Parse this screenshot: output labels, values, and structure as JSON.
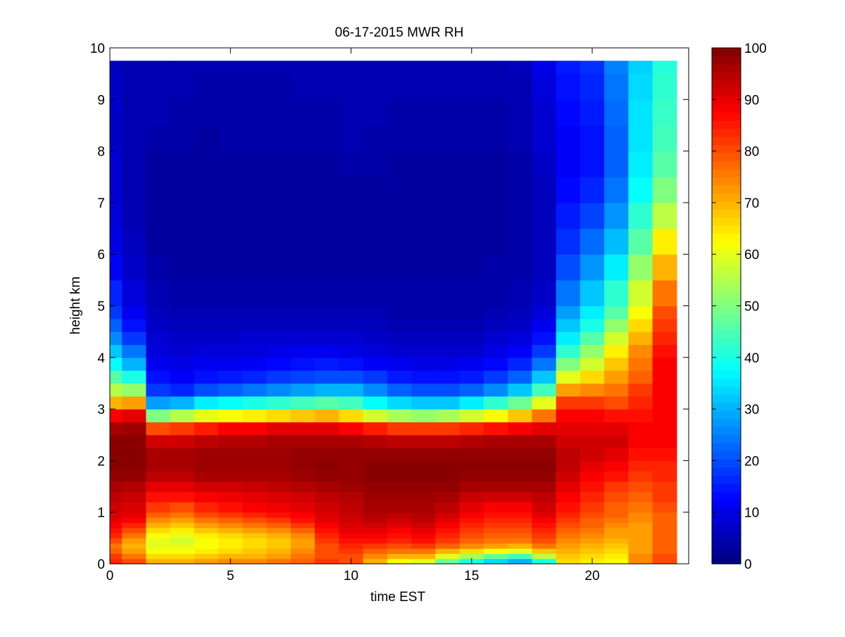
{
  "chart_data": {
    "type": "heatmap",
    "title": "06-17-2015 MWR RH",
    "xlabel": "time EST",
    "ylabel": "height km",
    "xlim": [
      0,
      24
    ],
    "ylim": [
      0,
      10
    ],
    "data_extent": {
      "x": [
        0,
        23.5
      ],
      "y": [
        0,
        9.75
      ]
    },
    "x_ticks": [
      0,
      5,
      10,
      15,
      20
    ],
    "y_ticks": [
      0,
      1,
      2,
      3,
      4,
      5,
      6,
      7,
      8,
      9,
      10
    ],
    "colorbar": {
      "colormap": "jet",
      "range": [
        0,
        100
      ],
      "ticks": [
        0,
        10,
        20,
        30,
        40,
        50,
        60,
        70,
        80,
        90,
        100
      ]
    },
    "cell_time_step_hr": 1,
    "heights_km": [
      0.0,
      0.1,
      0.2,
      0.3,
      0.4,
      0.5,
      0.6,
      0.7,
      0.8,
      0.9,
      1.0,
      1.2,
      1.4,
      1.6,
      1.8,
      2.0,
      2.25,
      2.5,
      2.75,
      3.0,
      3.25,
      3.5,
      3.75,
      4.0,
      4.25,
      4.5,
      4.75,
      5.0,
      5.5,
      6.0,
      6.5,
      7.0,
      7.5,
      8.0,
      8.5,
      9.0,
      9.5,
      9.75
    ],
    "times": [
      0,
      1,
      2,
      3,
      4,
      5,
      6,
      7,
      8,
      9,
      10,
      11,
      12,
      13,
      14,
      15,
      16,
      17,
      18,
      19,
      20,
      21,
      22,
      23
    ],
    "rh_percent_profiles": [
      {
        "time": 0,
        "rh": [
          84,
          82,
          78,
          76,
          80,
          84,
          86,
          88,
          90,
          91,
          92,
          94,
          96,
          98,
          99,
          99,
          99,
          96,
          88,
          70,
          55,
          46,
          38,
          32,
          26,
          22,
          18,
          16,
          12,
          10,
          9,
          8,
          8,
          7,
          7,
          7,
          6,
          6
        ]
      },
      {
        "time": 1,
        "rh": [
          80,
          76,
          72,
          70,
          72,
          76,
          80,
          84,
          88,
          90,
          91,
          93,
          95,
          98,
          99,
          99,
          99,
          97,
          90,
          72,
          52,
          40,
          30,
          24,
          18,
          14,
          11,
          9,
          7,
          6,
          5,
          5,
          5,
          5,
          5,
          5,
          5,
          5
        ]
      },
      {
        "time": 2,
        "rh": [
          70,
          66,
          62,
          60,
          60,
          62,
          66,
          70,
          74,
          78,
          82,
          86,
          90,
          94,
          96,
          96,
          92,
          80,
          50,
          28,
          18,
          14,
          11,
          9,
          8,
          7,
          6,
          5,
          4,
          3,
          3,
          3,
          3,
          4,
          5,
          5,
          5,
          5
        ]
      },
      {
        "time": 3,
        "rh": [
          70,
          66,
          62,
          60,
          58,
          60,
          64,
          68,
          72,
          76,
          80,
          86,
          90,
          94,
          96,
          96,
          92,
          82,
          55,
          30,
          16,
          12,
          10,
          8,
          7,
          6,
          5,
          4,
          3,
          3,
          3,
          3,
          3,
          4,
          4,
          5,
          5,
          5
        ]
      },
      {
        "time": 4,
        "rh": [
          72,
          68,
          64,
          62,
          62,
          64,
          68,
          72,
          76,
          80,
          84,
          88,
          92,
          96,
          97,
          97,
          94,
          85,
          60,
          36,
          20,
          14,
          11,
          9,
          7,
          6,
          5,
          4,
          3,
          3,
          3,
          3,
          3,
          3,
          4,
          4,
          5,
          5
        ]
      },
      {
        "time": 5,
        "rh": [
          74,
          70,
          66,
          64,
          64,
          66,
          70,
          74,
          78,
          82,
          86,
          89,
          92,
          96,
          97,
          97,
          95,
          88,
          62,
          38,
          22,
          15,
          11,
          9,
          7,
          6,
          5,
          4,
          3,
          3,
          3,
          3,
          3,
          4,
          4,
          4,
          5,
          5
        ]
      },
      {
        "time": 6,
        "rh": [
          74,
          70,
          68,
          66,
          66,
          68,
          72,
          76,
          80,
          84,
          88,
          90,
          93,
          96,
          97,
          97,
          95,
          88,
          64,
          40,
          24,
          16,
          12,
          9,
          8,
          6,
          5,
          4,
          3,
          3,
          3,
          3,
          3,
          4,
          4,
          4,
          5,
          5
        ]
      },
      {
        "time": 7,
        "rh": [
          76,
          72,
          70,
          68,
          68,
          70,
          74,
          78,
          82,
          86,
          89,
          91,
          94,
          96,
          97,
          97,
          96,
          90,
          66,
          42,
          26,
          18,
          13,
          10,
          8,
          6,
          5,
          4,
          3,
          3,
          3,
          3,
          3,
          4,
          4,
          4,
          5,
          5
        ]
      },
      {
        "time": 8,
        "rh": [
          78,
          76,
          74,
          72,
          72,
          74,
          78,
          82,
          86,
          88,
          90,
          92,
          95,
          97,
          98,
          98,
          96,
          90,
          68,
          44,
          28,
          19,
          14,
          11,
          8,
          6,
          5,
          4,
          3,
          3,
          3,
          3,
          3,
          4,
          4,
          5,
          5,
          5
        ]
      },
      {
        "time": 9,
        "rh": [
          82,
          80,
          80,
          80,
          82,
          84,
          86,
          88,
          90,
          91,
          92,
          94,
          96,
          98,
          99,
          98,
          96,
          90,
          70,
          46,
          30,
          20,
          15,
          11,
          8,
          6,
          5,
          4,
          3,
          3,
          3,
          3,
          3,
          4,
          4,
          5,
          5,
          5
        ]
      },
      {
        "time": 10,
        "rh": [
          80,
          80,
          82,
          84,
          86,
          88,
          90,
          91,
          92,
          93,
          94,
          95,
          97,
          98,
          98,
          98,
          96,
          88,
          66,
          44,
          30,
          20,
          14,
          10,
          8,
          6,
          5,
          4,
          3,
          3,
          3,
          3,
          4,
          5,
          5,
          5,
          5,
          5
        ]
      },
      {
        "time": 11,
        "rh": [
          70,
          74,
          78,
          82,
          86,
          88,
          90,
          92,
          94,
          95,
          96,
          97,
          98,
          99,
          99,
          98,
          95,
          85,
          58,
          38,
          26,
          18,
          12,
          9,
          7,
          6,
          5,
          4,
          3,
          3,
          3,
          3,
          4,
          4,
          5,
          5,
          5,
          5
        ]
      },
      {
        "time": 12,
        "rh": [
          62,
          70,
          76,
          80,
          84,
          86,
          88,
          90,
          92,
          94,
          96,
          97,
          98,
          99,
          99,
          98,
          94,
          82,
          54,
          34,
          22,
          15,
          11,
          8,
          6,
          5,
          4,
          4,
          3,
          3,
          3,
          3,
          3,
          4,
          4,
          5,
          5,
          5
        ]
      },
      {
        "time": 13,
        "rh": [
          60,
          70,
          76,
          82,
          86,
          88,
          90,
          92,
          94,
          95,
          96,
          97,
          98,
          99,
          99,
          98,
          94,
          82,
          52,
          32,
          20,
          14,
          10,
          8,
          6,
          5,
          4,
          4,
          3,
          3,
          3,
          3,
          3,
          4,
          4,
          5,
          5,
          5
        ]
      },
      {
        "time": 14,
        "rh": [
          48,
          60,
          70,
          78,
          82,
          84,
          86,
          88,
          90,
          92,
          94,
          96,
          98,
          99,
          99,
          98,
          94,
          82,
          54,
          32,
          20,
          14,
          10,
          8,
          6,
          5,
          4,
          4,
          3,
          3,
          3,
          3,
          3,
          4,
          4,
          5,
          5,
          5
        ]
      },
      {
        "time": 15,
        "rh": [
          40,
          54,
          66,
          74,
          78,
          80,
          82,
          84,
          86,
          88,
          90,
          93,
          96,
          98,
          99,
          98,
          95,
          84,
          58,
          36,
          22,
          15,
          11,
          8,
          6,
          5,
          4,
          4,
          3,
          3,
          3,
          3,
          3,
          4,
          4,
          5,
          5,
          5
        ]
      },
      {
        "time": 16,
        "rh": [
          34,
          48,
          62,
          72,
          76,
          78,
          80,
          82,
          84,
          86,
          88,
          92,
          96,
          98,
          99,
          98,
          96,
          86,
          62,
          42,
          26,
          18,
          13,
          10,
          8,
          6,
          5,
          4,
          4,
          3,
          3,
          3,
          3,
          4,
          4,
          5,
          5,
          5
        ]
      },
      {
        "time": 17,
        "rh": [
          30,
          44,
          60,
          70,
          76,
          78,
          80,
          82,
          84,
          86,
          88,
          92,
          96,
          98,
          99,
          98,
          96,
          88,
          68,
          48,
          32,
          22,
          16,
          12,
          9,
          7,
          6,
          5,
          4,
          4,
          4,
          4,
          4,
          5,
          5,
          5,
          6,
          6
        ]
      },
      {
        "time": 18,
        "rh": [
          40,
          56,
          68,
          76,
          80,
          82,
          84,
          86,
          88,
          90,
          92,
          94,
          96,
          98,
          99,
          98,
          96,
          90,
          76,
          60,
          44,
          32,
          24,
          18,
          14,
          11,
          9,
          7,
          6,
          6,
          6,
          6,
          7,
          8,
          8,
          9,
          10,
          10
        ]
      },
      {
        "time": 19,
        "rh": [
          66,
          68,
          70,
          72,
          74,
          76,
          78,
          80,
          82,
          84,
          86,
          88,
          90,
          92,
          94,
          94,
          92,
          90,
          88,
          82,
          72,
          60,
          50,
          42,
          36,
          32,
          28,
          24,
          20,
          17,
          15,
          13,
          12,
          12,
          13,
          14,
          15,
          15
        ]
      },
      {
        "time": 20,
        "rh": [
          64,
          66,
          68,
          70,
          72,
          74,
          76,
          78,
          78,
          80,
          82,
          84,
          86,
          88,
          90,
          92,
          92,
          90,
          88,
          82,
          74,
          66,
          58,
          52,
          46,
          40,
          36,
          32,
          27,
          23,
          19,
          16,
          14,
          14,
          15,
          16,
          17,
          17
        ]
      },
      {
        "time": 21,
        "rh": [
          62,
          64,
          66,
          68,
          70,
          72,
          72,
          74,
          76,
          78,
          78,
          80,
          82,
          86,
          88,
          90,
          92,
          90,
          86,
          80,
          76,
          72,
          68,
          64,
          58,
          52,
          46,
          42,
          36,
          31,
          27,
          24,
          22,
          22,
          23,
          24,
          25,
          25
        ]
      },
      {
        "time": 22,
        "rh": [
          74,
          74,
          72,
          72,
          72,
          72,
          72,
          72,
          74,
          74,
          76,
          78,
          80,
          82,
          84,
          86,
          88,
          88,
          86,
          84,
          82,
          78,
          76,
          74,
          70,
          66,
          62,
          58,
          52,
          46,
          42,
          38,
          36,
          35,
          35,
          34,
          33,
          32
        ]
      },
      {
        "time": 23,
        "rh": [
          80,
          80,
          78,
          78,
          78,
          78,
          78,
          78,
          78,
          78,
          80,
          82,
          82,
          84,
          84,
          86,
          88,
          88,
          88,
          88,
          88,
          88,
          88,
          86,
          84,
          82,
          80,
          76,
          70,
          64,
          56,
          50,
          46,
          44,
          43,
          42,
          41,
          40
        ]
      }
    ]
  }
}
